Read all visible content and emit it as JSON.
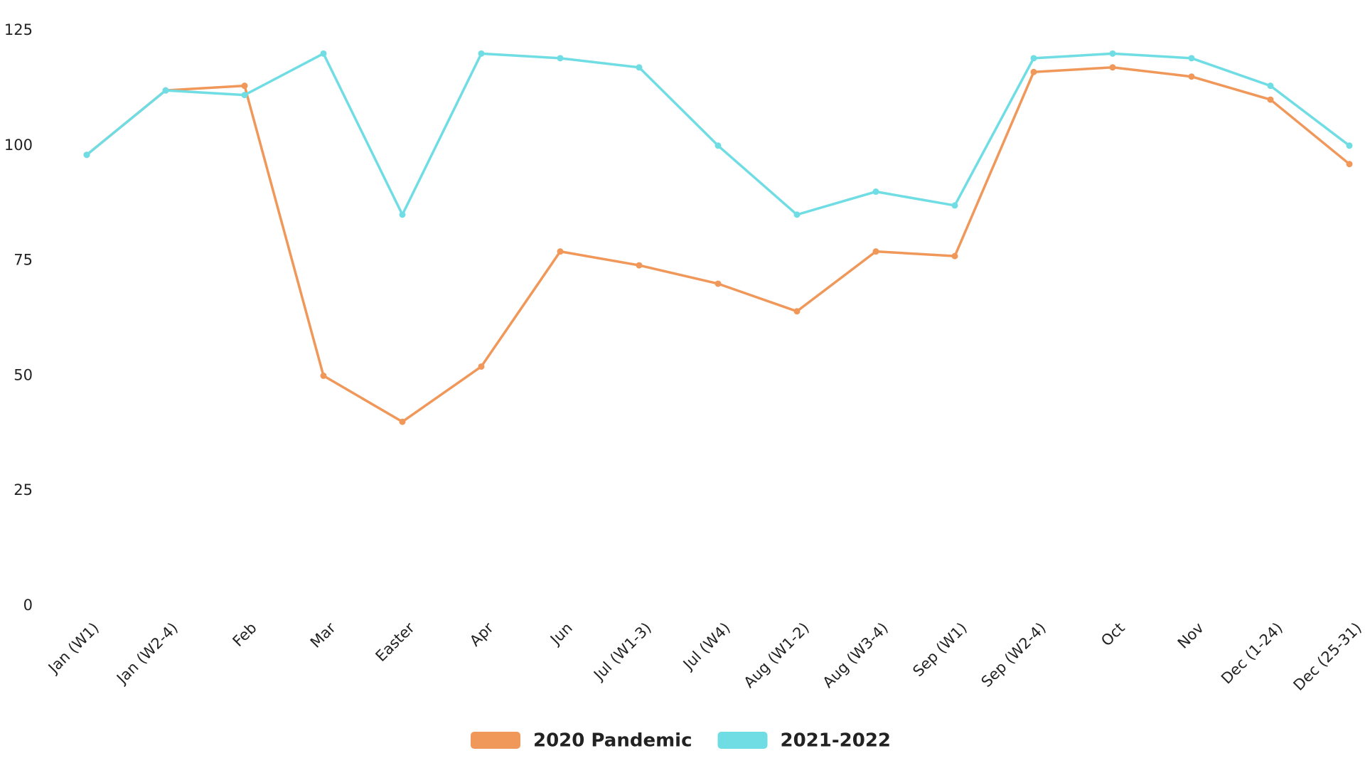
{
  "chart_data": {
    "type": "line",
    "categories": [
      "Jan (W1)",
      "Jan (W2-4)",
      "Feb",
      "Mar",
      "Easter",
      "Apr",
      "Jun",
      "Jul (W1-3)",
      "Jul (W4)",
      "Aug (W1-2)",
      "Aug (W3-4)",
      "Sep (W1)",
      "Sep (W2-4)",
      "Oct",
      "Nov",
      "Dec (1-24)",
      "Dec (25-31)"
    ],
    "series": [
      {
        "name": "2020 Pandemic",
        "color": "#f0975a",
        "values": [
          98,
          112,
          113,
          50,
          40,
          52,
          77,
          74,
          70,
          64,
          77,
          76,
          116,
          117,
          115,
          110,
          96
        ]
      },
      {
        "name": "2021-2022",
        "color": "#6fdde3",
        "values": [
          98,
          112,
          111,
          120,
          85,
          120,
          119,
          117,
          100,
          85,
          90,
          87,
          119,
          120,
          119,
          113,
          100
        ]
      }
    ],
    "ylim": [
      0,
      125
    ],
    "yticks": [
      0,
      25,
      50,
      75,
      100,
      125
    ],
    "grid": false,
    "legend": "bottom"
  }
}
